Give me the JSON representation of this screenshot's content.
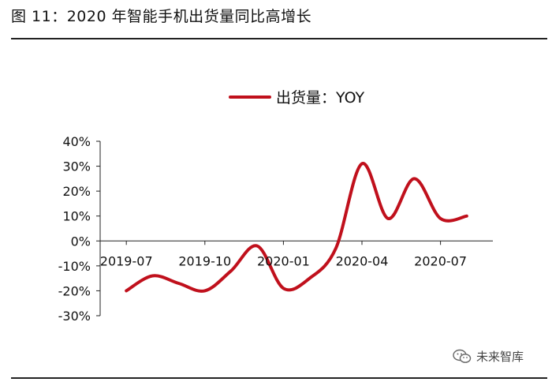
{
  "figure": {
    "title": "图 11：2020 年智能手机出货量同比高增长"
  },
  "watermark": {
    "text": "未来智库",
    "icon": "wechat-icon"
  },
  "colors": {
    "series": "#c0101c",
    "axis": "#222222",
    "text": "#111111"
  },
  "chart_data": {
    "type": "line",
    "title": "",
    "xlabel": "",
    "ylabel": "",
    "ylim": [
      -30,
      40
    ],
    "yticks": [
      -30,
      -20,
      -10,
      0,
      10,
      20,
      30,
      40
    ],
    "ytick_labels": [
      "-30%",
      "-20%",
      "-10%",
      "0%",
      "10%",
      "20%",
      "30%",
      "40%"
    ],
    "xlim": [
      "2019-06",
      "2020-09"
    ],
    "xticks": [
      "2019-07",
      "2019-10",
      "2020-01",
      "2020-04",
      "2020-07"
    ],
    "grid": false,
    "legend_position": "top-center",
    "series": [
      {
        "name": "出货量：YOY",
        "x": [
          "2019-07",
          "2019-08",
          "2019-09",
          "2019-10",
          "2019-11",
          "2019-12",
          "2020-01",
          "2020-02",
          "2020-03",
          "2020-04",
          "2020-05",
          "2020-06",
          "2020-07",
          "2020-08"
        ],
        "values": [
          -20,
          -14,
          -17,
          -20,
          -12,
          -2,
          -19,
          -15,
          -3,
          31,
          9,
          25,
          9,
          10
        ]
      }
    ]
  }
}
